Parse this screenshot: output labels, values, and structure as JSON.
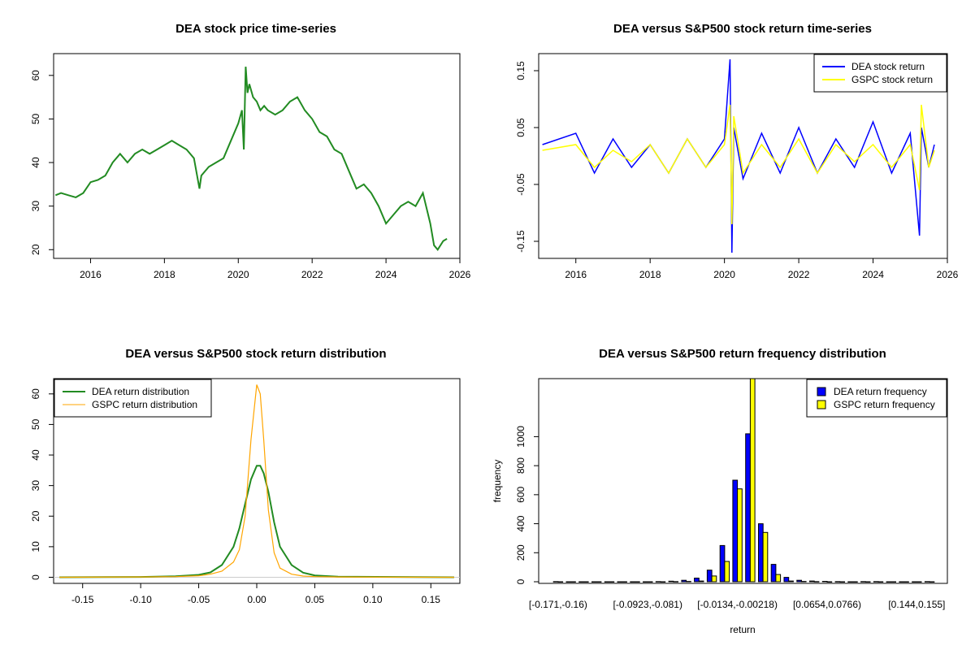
{
  "chart_data": [
    {
      "type": "line",
      "title": "DEA stock price time-series",
      "xlabel": "",
      "ylabel": "",
      "xlim": [
        2015.0,
        2026.0
      ],
      "ylim": [
        18,
        65
      ],
      "x_ticks": [
        "2016",
        "2018",
        "2020",
        "2022",
        "2024",
        "2026"
      ],
      "y_ticks": [
        "20",
        "30",
        "40",
        "50",
        "60"
      ],
      "colors": {
        "line": "#228B22"
      },
      "series": [
        {
          "x": [
            2015.05,
            2015.2,
            2015.4,
            2015.6,
            2015.8,
            2016.0,
            2016.2,
            2016.4,
            2016.6,
            2016.8,
            2017.0,
            2017.2,
            2017.4,
            2017.6,
            2017.8,
            2018.0,
            2018.2,
            2018.4,
            2018.6,
            2018.8,
            2018.95,
            2019.0,
            2019.2,
            2019.4,
            2019.6,
            2019.8,
            2020.0,
            2020.1,
            2020.15,
            2020.2,
            2020.25,
            2020.3,
            2020.4,
            2020.5,
            2020.6,
            2020.7,
            2020.8,
            2021.0,
            2021.2,
            2021.4,
            2021.6,
            2021.8,
            2022.0,
            2022.2,
            2022.4,
            2022.6,
            2022.8,
            2023.0,
            2023.2,
            2023.4,
            2023.6,
            2023.8,
            2024.0,
            2024.2,
            2024.4,
            2024.6,
            2024.8,
            2025.0,
            2025.2,
            2025.3,
            2025.4,
            2025.55,
            2025.65
          ],
          "y": [
            32.5,
            33,
            32.5,
            32,
            33,
            35.5,
            36,
            37,
            40,
            42,
            40,
            42,
            43,
            42,
            43,
            44,
            45,
            44,
            43,
            41,
            34,
            37,
            39,
            40,
            41,
            45,
            49,
            52,
            43,
            62,
            56,
            58,
            55,
            54,
            52,
            53,
            52,
            51,
            52,
            54,
            55,
            52,
            50,
            47,
            46,
            43,
            42,
            38,
            34,
            35,
            33,
            30,
            26,
            28,
            30,
            31,
            30,
            33,
            26,
            21,
            20,
            22,
            22.5
          ]
        }
      ]
    },
    {
      "type": "line",
      "title": "DEA versus S&P500 stock return time-series",
      "xlabel": "",
      "ylabel": "",
      "xlim": [
        2015.0,
        2026.0
      ],
      "ylim": [
        -0.18,
        0.18
      ],
      "x_ticks": [
        "2016",
        "2018",
        "2020",
        "2022",
        "2024",
        "2026"
      ],
      "y_ticks": [
        "-0.15",
        "-0.05",
        "0.05",
        "0.15"
      ],
      "legend": "top-right",
      "series": [
        {
          "name": "DEA stock return",
          "color": "#0000FF",
          "x": [
            2015.1,
            2016.0,
            2016.5,
            2017.0,
            2017.5,
            2018.0,
            2018.5,
            2019.0,
            2019.5,
            2020.0,
            2020.15,
            2020.2,
            2020.25,
            2020.5,
            2021.0,
            2021.5,
            2022.0,
            2022.5,
            2023.0,
            2023.5,
            2024.0,
            2024.5,
            2025.0,
            2025.25,
            2025.3,
            2025.5,
            2025.65
          ],
          "y": [
            0.02,
            0.04,
            -0.03,
            0.03,
            -0.02,
            0.02,
            -0.03,
            0.03,
            -0.02,
            0.03,
            0.17,
            -0.17,
            0.05,
            -0.04,
            0.04,
            -0.03,
            0.05,
            -0.03,
            0.03,
            -0.02,
            0.06,
            -0.03,
            0.04,
            -0.14,
            0.05,
            -0.02,
            0.02
          ]
        },
        {
          "name": "GSPC stock return",
          "color": "#FFFF00",
          "x": [
            2015.1,
            2016.0,
            2016.5,
            2017.0,
            2017.5,
            2018.0,
            2018.5,
            2019.0,
            2019.5,
            2020.0,
            2020.15,
            2020.2,
            2020.25,
            2020.5,
            2021.0,
            2021.5,
            2022.0,
            2022.5,
            2023.0,
            2023.5,
            2024.0,
            2024.5,
            2025.0,
            2025.25,
            2025.3,
            2025.5,
            2025.65
          ],
          "y": [
            0.01,
            0.02,
            -0.02,
            0.01,
            -0.01,
            0.02,
            -0.03,
            0.03,
            -0.02,
            0.02,
            0.09,
            -0.12,
            0.07,
            -0.03,
            0.02,
            -0.02,
            0.03,
            -0.03,
            0.02,
            -0.01,
            0.02,
            -0.02,
            0.02,
            -0.06,
            0.09,
            -0.02,
            0.01
          ]
        }
      ]
    },
    {
      "type": "line",
      "title": "DEA versus S&P500 stock return distribution",
      "xlabel": "",
      "ylabel": "",
      "xlim": [
        -0.175,
        0.175
      ],
      "ylim": [
        -2,
        65
      ],
      "x_ticks": [
        "-0.15",
        "-0.10",
        "-0.05",
        "0.00",
        "0.05",
        "0.10",
        "0.15"
      ],
      "y_ticks": [
        "0",
        "10",
        "20",
        "30",
        "40",
        "50",
        "60"
      ],
      "legend": "top-left",
      "series": [
        {
          "name": "DEA return distribution",
          "color": "#228B22",
          "x": [
            -0.17,
            -0.1,
            -0.07,
            -0.05,
            -0.04,
            -0.03,
            -0.02,
            -0.015,
            -0.01,
            -0.005,
            0.0,
            0.003,
            0.006,
            0.01,
            0.015,
            0.02,
            0.03,
            0.04,
            0.05,
            0.07,
            0.17
          ],
          "y": [
            0,
            0.1,
            0.3,
            0.8,
            1.6,
            4,
            10,
            16,
            24,
            32,
            36.5,
            36.5,
            34,
            28,
            18,
            10,
            4,
            1.5,
            0.6,
            0.2,
            0
          ]
        },
        {
          "name": "GSPC return distribution",
          "color": "#FFA500",
          "x": [
            -0.17,
            -0.1,
            -0.07,
            -0.05,
            -0.04,
            -0.03,
            -0.02,
            -0.015,
            -0.01,
            -0.005,
            0.0,
            0.003,
            0.006,
            0.01,
            0.015,
            0.02,
            0.03,
            0.04,
            0.05,
            0.07,
            0.17
          ],
          "y": [
            0,
            0.1,
            0.2,
            0.5,
            1,
            2,
            5,
            9,
            20,
            45,
            63,
            60,
            45,
            22,
            8,
            3,
            1,
            0.4,
            0.2,
            0.1,
            0
          ]
        }
      ]
    },
    {
      "type": "bar",
      "title": "DEA versus S&P500 return frequency distribution",
      "xlabel": "return",
      "ylabel": "frequency",
      "ylim": [
        0,
        1400
      ],
      "y_ticks": [
        "0",
        "200",
        "400",
        "600",
        "800",
        "1000"
      ],
      "x_tick_labels": [
        "[-0.171,-0.16)",
        "[-0.0923,-0.081)",
        "[-0.0134,-0.00218)",
        "[0.0654,0.0766)",
        "[0.144,0.155]"
      ],
      "x_tick_positions": [
        0,
        7,
        14,
        21,
        28
      ],
      "legend": "top-right",
      "series": [
        {
          "name": "DEA return frequency",
          "color": "#0000FF",
          "values": [
            1,
            0,
            0,
            0,
            0,
            0,
            0,
            0,
            1,
            4,
            10,
            25,
            80,
            250,
            700,
            1020,
            400,
            120,
            30,
            10,
            5,
            3,
            1,
            0,
            1,
            1,
            0,
            0,
            0,
            1
          ]
        },
        {
          "name": "GSPC return frequency",
          "color": "#FFFF00",
          "values": [
            0,
            0,
            0,
            0,
            0,
            0,
            0,
            0,
            0,
            1,
            2,
            5,
            40,
            140,
            640,
            1400,
            340,
            50,
            5,
            2,
            1,
            0,
            0,
            0,
            0,
            0,
            0,
            0,
            0,
            0
          ]
        }
      ]
    }
  ]
}
